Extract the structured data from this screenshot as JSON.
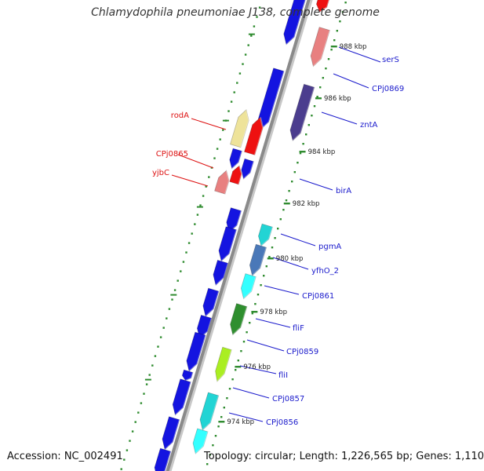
{
  "title": "Chlamydophila pneumoniae J138, complete genome",
  "footer": {
    "accession": "Accession: NC_002491",
    "summary": "Topology: circular; Length: 1,226,565 bp; Genes: 1,110"
  },
  "colors": {
    "backbone": "#8a8a8a",
    "tick": "#2e8b2e",
    "forward_label": "#1a1acc",
    "reverse_label": "#dd1111",
    "blue": "#1414e0",
    "red": "#ee1111",
    "salmon": "#e88080",
    "yellow": "#eee39a",
    "slate": "#4b3d8e",
    "cyan": "#22d4d4",
    "steel": "#4a78b8",
    "aqua": "#33ffff",
    "green": "#2f8f2f",
    "lime": "#aaee22"
  },
  "coordinates": [
    "988 kbp",
    "986 kbp",
    "984 kbp",
    "982 kbp",
    "980 kbp",
    "978 kbp",
    "976 kbp",
    "974 kbp"
  ],
  "forward_genes": [
    "serS",
    "CPj0869",
    "zntA",
    "birA",
    "pgmA",
    "yfhO_2",
    "CPj0861",
    "fliF",
    "CPj0859",
    "fliI",
    "CPj0857",
    "CPj0856"
  ],
  "reverse_genes": [
    "rodA",
    "CPj0865",
    "yjbC"
  ]
}
